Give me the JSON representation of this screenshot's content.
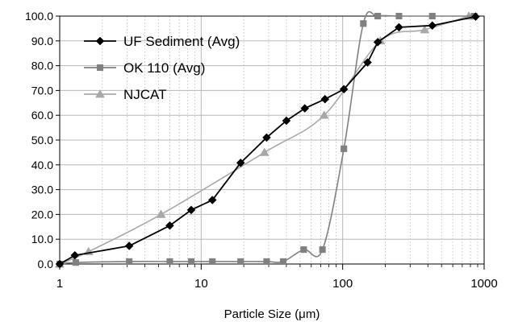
{
  "chart_data": {
    "type": "line",
    "xscale": "log",
    "xlim": [
      1,
      1000
    ],
    "ylim": [
      0,
      100
    ],
    "xlabel": "Particle Size (μm)",
    "ylabel": "",
    "x_ticks": [
      "1",
      "10",
      "100",
      "1000"
    ],
    "y_ticks": [
      "0.0",
      "10.0",
      "20.0",
      "30.0",
      "40.0",
      "50.0",
      "60.0",
      "70.0",
      "80.0",
      "90.0",
      "100.0"
    ],
    "grid": {
      "horizontal": true,
      "vertical_major": true,
      "vertical_minor": true
    },
    "legend_position": "top-left",
    "series": [
      {
        "name": "UF Sediment (Avg)",
        "color": "#000000",
        "marker": "diamond",
        "smooth": false,
        "points": [
          [
            1,
            0.0
          ],
          [
            1.28,
            3.5
          ],
          [
            3.1,
            7.3
          ],
          [
            6.0,
            15.5
          ],
          [
            8.5,
            21.8
          ],
          [
            12.0,
            25.8
          ],
          [
            19.0,
            40.8
          ],
          [
            29.0,
            51.0
          ],
          [
            40.0,
            57.8
          ],
          [
            54.0,
            62.8
          ],
          [
            75.0,
            66.5
          ],
          [
            102.0,
            70.5
          ],
          [
            150.0,
            81.3
          ],
          [
            177.0,
            89.5
          ],
          [
            250.0,
            95.5
          ],
          [
            430.0,
            96.2
          ],
          [
            870.0,
            99.8
          ]
        ]
      },
      {
        "name": "OK 110 (Avg)",
        "color": "#808080",
        "marker": "square",
        "smooth": true,
        "points": [
          [
            1,
            0.0
          ],
          [
            1.3,
            0.6
          ],
          [
            3.1,
            1.0
          ],
          [
            6.0,
            1.0
          ],
          [
            8.5,
            1.0
          ],
          [
            12.0,
            1.0
          ],
          [
            19.0,
            1.0
          ],
          [
            29.0,
            1.0
          ],
          [
            38.0,
            1.0
          ],
          [
            53.0,
            5.8
          ],
          [
            72.0,
            5.8
          ],
          [
            102.0,
            46.5
          ],
          [
            140.0,
            97.0
          ],
          [
            177.0,
            100.0
          ],
          [
            250.0,
            100.0
          ],
          [
            430.0,
            100.0
          ],
          [
            850.0,
            100.0
          ]
        ]
      },
      {
        "name": "NJCAT",
        "color": "#a8a8a8",
        "marker": "triangle",
        "smooth": true,
        "points": [
          [
            1,
            0.0
          ],
          [
            1.6,
            5.0
          ],
          [
            5.2,
            20.0
          ],
          [
            28.0,
            45.0
          ],
          [
            74.0,
            60.0
          ],
          [
            185.0,
            90.0
          ],
          [
            380.0,
            94.5
          ],
          [
            780.0,
            100.0
          ]
        ]
      }
    ]
  }
}
